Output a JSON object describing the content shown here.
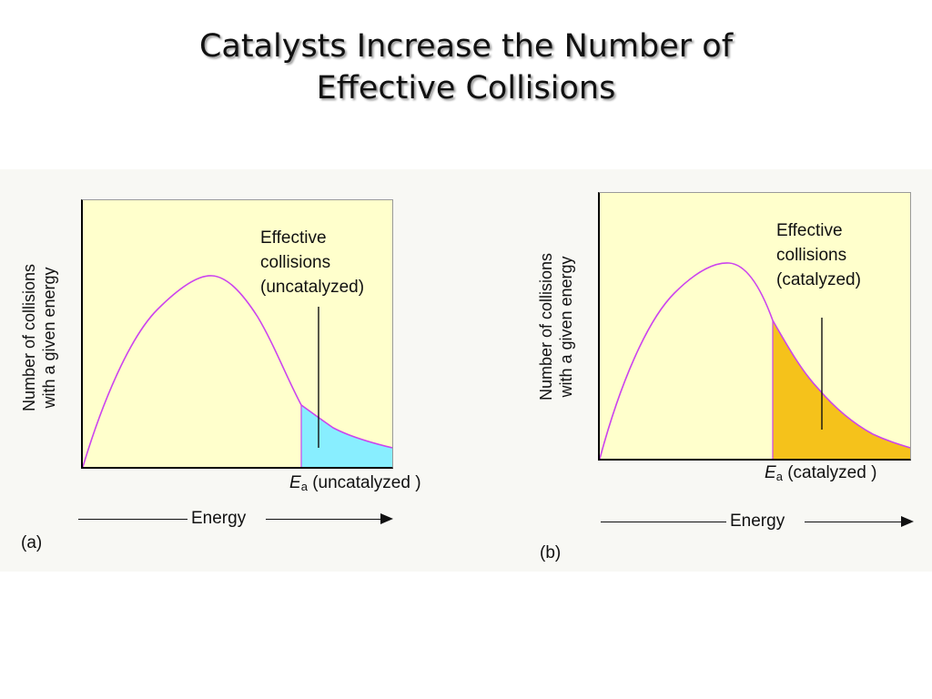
{
  "slide": {
    "title_line1": "Catalysts Increase the Number of",
    "title_line2": "Effective Collisions"
  },
  "panels": [
    {
      "label": "(a)",
      "ylabel_line1": "Number of collisions",
      "ylabel_line2": "with a given energy",
      "xlabel": "Energy",
      "annotation": [
        "Effective",
        "collisions",
        "(uncatalyzed)"
      ],
      "ea_symbol": "E",
      "ea_subscript": "a",
      "ea_note": "(uncatalyzed )",
      "shade_color": "#88eeff",
      "curve_color": "#cc44ee"
    },
    {
      "label": "(b)",
      "ylabel_line1": "Number of collisions",
      "ylabel_line2": "with a given energy",
      "xlabel": "Energy",
      "annotation": [
        "Effective",
        "collisions",
        "(catalyzed)"
      ],
      "ea_symbol": "E",
      "ea_subscript": "a",
      "ea_note": "(catalyzed )",
      "shade_color": "#f5c21b",
      "curve_color": "#cc44ee"
    }
  ],
  "colors": {
    "plot_background": "#ffffcc",
    "figure_background": "#f8f8f4"
  }
}
